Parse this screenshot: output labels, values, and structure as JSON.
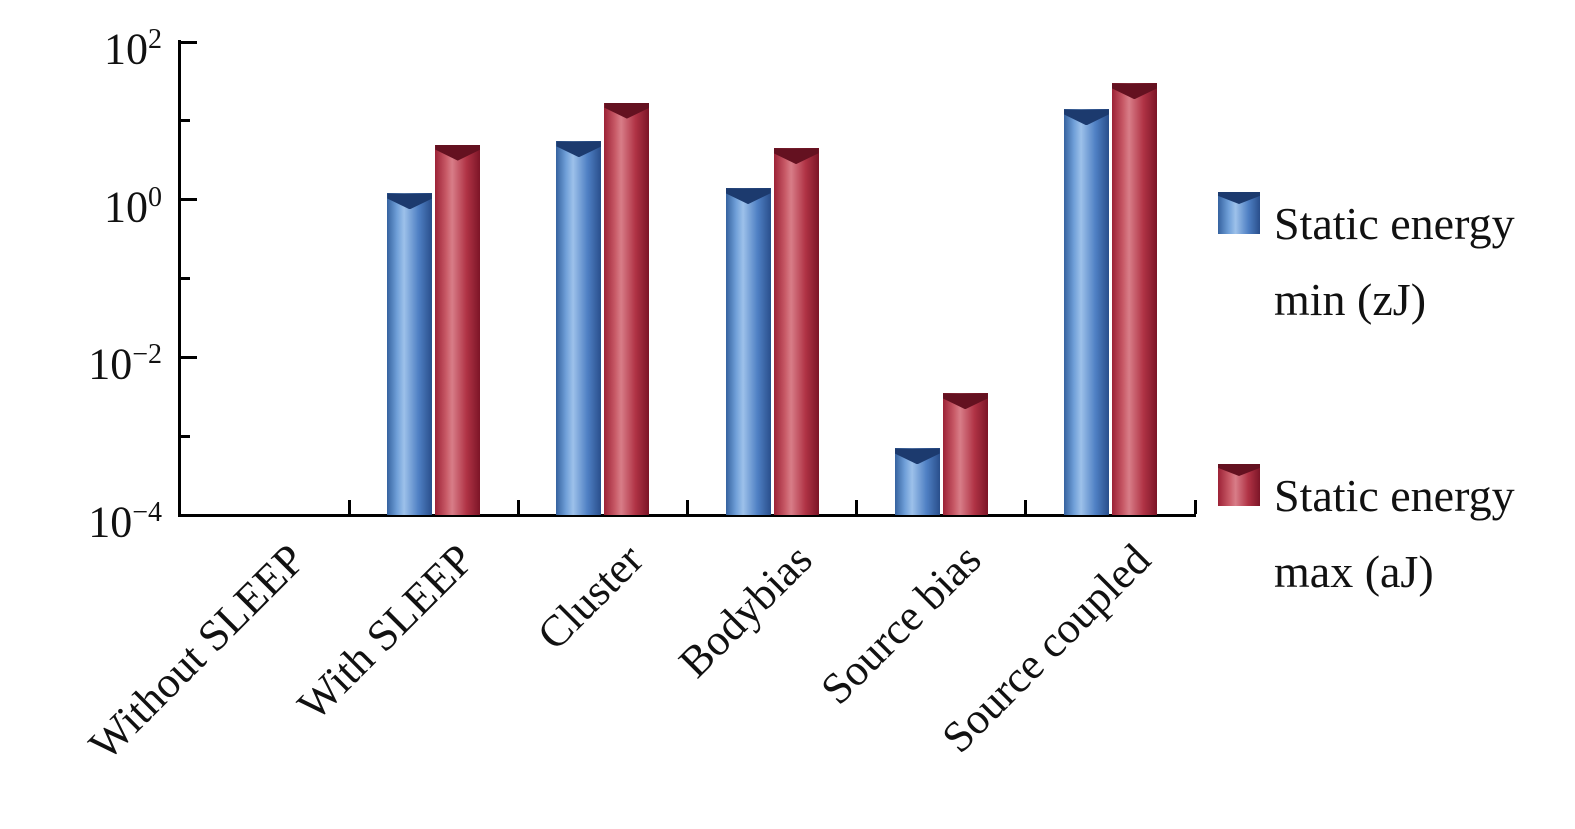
{
  "chart_data": {
    "type": "bar",
    "title": "",
    "xlabel": "",
    "ylabel": "",
    "scale": "log",
    "grid": false,
    "legend_position": "right",
    "ylim": [
      0.0001,
      100
    ],
    "categories": [
      "Without SLEEP",
      "With SLEEP",
      "Cluster",
      "Bodybias",
      "Source bias",
      "Source coupled"
    ],
    "series": [
      {
        "name": "Static energy min (zJ)",
        "color": "#3e72bc",
        "values": [
          null,
          1.2,
          5.5,
          1.4,
          0.0007,
          14
        ]
      },
      {
        "name": "Static energy max (aJ)",
        "color": "#b02c3e",
        "values": [
          null,
          5,
          17,
          4.5,
          0.0035,
          30
        ]
      }
    ],
    "yticks": [
      {
        "value": 100,
        "base": "10",
        "exp": "2"
      },
      {
        "value": 1,
        "base": "10",
        "exp": "0"
      },
      {
        "value": 0.01,
        "base": "10",
        "exp": "−2"
      },
      {
        "value": 0.0001,
        "base": "10",
        "exp": "−4"
      }
    ],
    "yticks_minor": [
      10,
      0.1,
      0.001
    ],
    "legend": [
      {
        "series": "min",
        "line1": "Static energy",
        "line2": "min (zJ)"
      },
      {
        "series": "max",
        "line1": "Static energy",
        "line2": "max (aJ)"
      }
    ]
  }
}
